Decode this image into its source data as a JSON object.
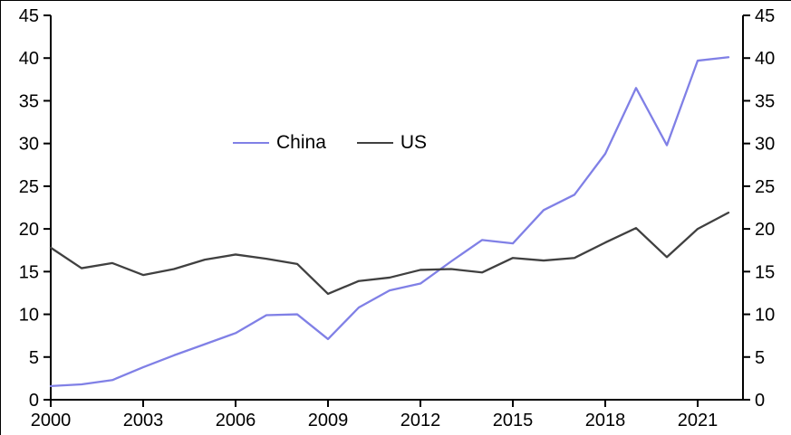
{
  "chart_data": {
    "type": "line",
    "title": "",
    "xlabel": "",
    "ylabel": "",
    "x": [
      2000,
      2001,
      2002,
      2003,
      2004,
      2005,
      2006,
      2007,
      2008,
      2009,
      2010,
      2011,
      2012,
      2013,
      2014,
      2015,
      2016,
      2017,
      2018,
      2019,
      2020,
      2021,
      2022
    ],
    "series": [
      {
        "name": "China",
        "color": "#8080e6",
        "values": [
          1.6,
          1.8,
          2.3,
          3.8,
          5.2,
          6.5,
          7.8,
          9.9,
          10.0,
          7.1,
          10.8,
          12.8,
          13.6,
          16.2,
          18.7,
          18.3,
          22.2,
          24.0,
          28.8,
          36.5,
          29.8,
          39.7,
          40.1
        ]
      },
      {
        "name": "US",
        "color": "#404040",
        "values": [
          17.8,
          15.4,
          16.0,
          14.6,
          15.3,
          16.4,
          17.0,
          16.5,
          15.9,
          12.4,
          13.9,
          14.3,
          15.2,
          15.3,
          14.9,
          16.6,
          16.3,
          16.6,
          18.4,
          20.1,
          16.7,
          20.0,
          21.9
        ]
      }
    ],
    "xlim": [
      2000,
      2022
    ],
    "ylim": [
      0,
      45
    ],
    "ytick_step": 5,
    "y_tick_labels": [
      "0",
      "5",
      "10",
      "15",
      "20",
      "25",
      "30",
      "35",
      "40",
      "45"
    ],
    "x_ticks": [
      2000,
      2003,
      2006,
      2009,
      2012,
      2015,
      2018,
      2021
    ],
    "x_tick_labels": [
      "2000",
      "2003",
      "2006",
      "2009",
      "2012",
      "2015",
      "2018",
      "2021"
    ],
    "axes": {
      "left": true,
      "right": true,
      "bottom": true,
      "top": false,
      "grid": false
    },
    "axis_color": "#000000",
    "legend": {
      "position": "inside-top-center",
      "labels": [
        "China",
        "US"
      ]
    }
  }
}
